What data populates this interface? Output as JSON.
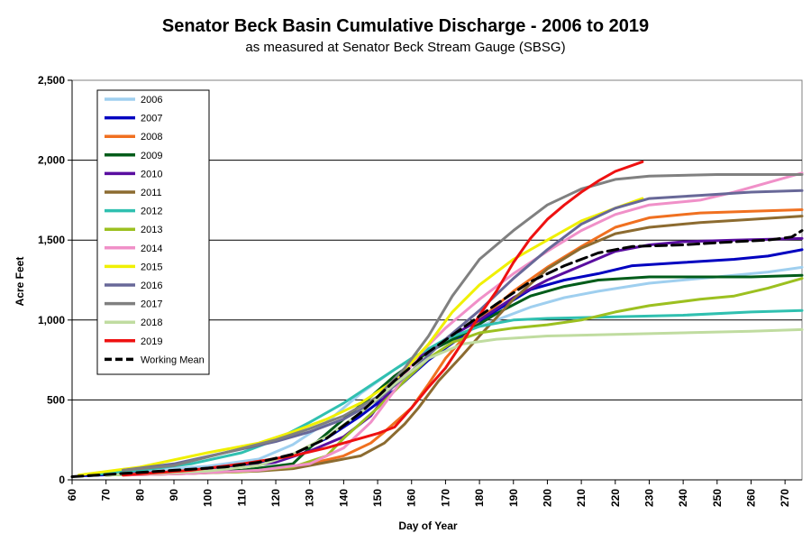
{
  "chart_data": {
    "type": "line",
    "title": "Senator Beck Basin Cumulative Discharge - 2006 to 2019",
    "subtitle": "as measured at Senator Beck Stream Gauge (SBSG)",
    "xlabel": "Day of Year",
    "ylabel": "Acre Feet",
    "xlim": [
      60,
      275
    ],
    "ylim": [
      0,
      2500
    ],
    "xticks": [
      60,
      70,
      80,
      90,
      100,
      110,
      120,
      130,
      140,
      150,
      160,
      170,
      180,
      190,
      200,
      210,
      220,
      230,
      240,
      250,
      260,
      270
    ],
    "yticks": [
      0,
      500,
      1000,
      1500,
      2000,
      2500
    ],
    "ytick_labels": [
      "0",
      "500",
      "1,000",
      "1,500",
      "2,000",
      "2,500"
    ],
    "grid": "horizontal",
    "legend_position": "top-left",
    "series": [
      {
        "name": "2006",
        "color": "#9fcfef",
        "dash": false,
        "points": [
          [
            65,
            25
          ],
          [
            80,
            55
          ],
          [
            100,
            85
          ],
          [
            115,
            130
          ],
          [
            125,
            220
          ],
          [
            135,
            360
          ],
          [
            145,
            540
          ],
          [
            155,
            690
          ],
          [
            165,
            820
          ],
          [
            175,
            920
          ],
          [
            185,
            1000
          ],
          [
            195,
            1080
          ],
          [
            205,
            1140
          ],
          [
            215,
            1180
          ],
          [
            230,
            1230
          ],
          [
            250,
            1270
          ],
          [
            265,
            1300
          ],
          [
            275,
            1330
          ]
        ]
      },
      {
        "name": "2007",
        "color": "#0000c0",
        "dash": false,
        "points": [
          [
            62,
            25
          ],
          [
            80,
            40
          ],
          [
            100,
            60
          ],
          [
            115,
            100
          ],
          [
            125,
            160
          ],
          [
            135,
            260
          ],
          [
            145,
            400
          ],
          [
            155,
            560
          ],
          [
            165,
            750
          ],
          [
            175,
            900
          ],
          [
            185,
            1060
          ],
          [
            195,
            1190
          ],
          [
            205,
            1250
          ],
          [
            215,
            1290
          ],
          [
            225,
            1340
          ],
          [
            240,
            1360
          ],
          [
            255,
            1380
          ],
          [
            265,
            1400
          ],
          [
            275,
            1440
          ]
        ]
      },
      {
        "name": "2008",
        "color": "#f07020",
        "dash": false,
        "points": [
          [
            75,
            30
          ],
          [
            95,
            40
          ],
          [
            115,
            60
          ],
          [
            130,
            100
          ],
          [
            140,
            150
          ],
          [
            148,
            230
          ],
          [
            152,
            300
          ],
          [
            160,
            450
          ],
          [
            165,
            600
          ],
          [
            170,
            760
          ],
          [
            175,
            880
          ],
          [
            180,
            1000
          ],
          [
            190,
            1180
          ],
          [
            200,
            1330
          ],
          [
            210,
            1460
          ],
          [
            220,
            1580
          ],
          [
            230,
            1640
          ],
          [
            245,
            1670
          ],
          [
            260,
            1680
          ],
          [
            275,
            1690
          ]
        ]
      },
      {
        "name": "2009",
        "color": "#005c1a",
        "dash": false,
        "points": [
          [
            70,
            30
          ],
          [
            90,
            45
          ],
          [
            110,
            60
          ],
          [
            125,
            100
          ],
          [
            130,
            200
          ],
          [
            135,
            290
          ],
          [
            140,
            380
          ],
          [
            148,
            520
          ],
          [
            155,
            650
          ],
          [
            165,
            800
          ],
          [
            175,
            910
          ],
          [
            185,
            1040
          ],
          [
            195,
            1150
          ],
          [
            205,
            1210
          ],
          [
            215,
            1250
          ],
          [
            230,
            1270
          ],
          [
            260,
            1270
          ],
          [
            275,
            1280
          ]
        ]
      },
      {
        "name": "2010",
        "color": "#5a0ea0",
        "dash": false,
        "points": [
          [
            70,
            30
          ],
          [
            90,
            45
          ],
          [
            105,
            65
          ],
          [
            120,
            110
          ],
          [
            130,
            180
          ],
          [
            140,
            270
          ],
          [
            148,
            400
          ],
          [
            155,
            600
          ],
          [
            162,
            770
          ],
          [
            170,
            880
          ],
          [
            180,
            1000
          ],
          [
            190,
            1140
          ],
          [
            200,
            1250
          ],
          [
            210,
            1340
          ],
          [
            220,
            1430
          ],
          [
            230,
            1470
          ],
          [
            240,
            1490
          ],
          [
            255,
            1500
          ],
          [
            275,
            1510
          ]
        ]
      },
      {
        "name": "2011",
        "color": "#8c6b30",
        "dash": false,
        "points": [
          [
            75,
            30
          ],
          [
            95,
            40
          ],
          [
            115,
            55
          ],
          [
            125,
            70
          ],
          [
            135,
            110
          ],
          [
            145,
            150
          ],
          [
            152,
            230
          ],
          [
            158,
            350
          ],
          [
            162,
            450
          ],
          [
            168,
            620
          ],
          [
            175,
            780
          ],
          [
            180,
            900
          ],
          [
            190,
            1130
          ],
          [
            200,
            1320
          ],
          [
            210,
            1450
          ],
          [
            220,
            1540
          ],
          [
            230,
            1580
          ],
          [
            245,
            1610
          ],
          [
            260,
            1630
          ],
          [
            275,
            1650
          ]
        ]
      },
      {
        "name": "2012",
        "color": "#30c0b0",
        "dash": false,
        "points": [
          [
            65,
            30
          ],
          [
            80,
            60
          ],
          [
            95,
            100
          ],
          [
            110,
            170
          ],
          [
            120,
            250
          ],
          [
            130,
            360
          ],
          [
            140,
            480
          ],
          [
            150,
            620
          ],
          [
            160,
            760
          ],
          [
            170,
            880
          ],
          [
            180,
            960
          ],
          [
            190,
            1000
          ],
          [
            200,
            1010
          ],
          [
            220,
            1020
          ],
          [
            240,
            1030
          ],
          [
            260,
            1050
          ],
          [
            275,
            1060
          ]
        ]
      },
      {
        "name": "2013",
        "color": "#9cc020",
        "dash": false,
        "points": [
          [
            70,
            30
          ],
          [
            90,
            40
          ],
          [
            110,
            50
          ],
          [
            125,
            80
          ],
          [
            135,
            150
          ],
          [
            140,
            260
          ],
          [
            150,
            450
          ],
          [
            158,
            620
          ],
          [
            165,
            760
          ],
          [
            172,
            860
          ],
          [
            180,
            920
          ],
          [
            190,
            950
          ],
          [
            200,
            970
          ],
          [
            210,
            1000
          ],
          [
            220,
            1050
          ],
          [
            230,
            1090
          ],
          [
            245,
            1130
          ],
          [
            255,
            1150
          ],
          [
            265,
            1200
          ],
          [
            275,
            1260
          ]
        ]
      },
      {
        "name": "2014",
        "color": "#f090c8",
        "dash": false,
        "points": [
          [
            75,
            30
          ],
          [
            95,
            40
          ],
          [
            115,
            60
          ],
          [
            130,
            100
          ],
          [
            140,
            200
          ],
          [
            148,
            360
          ],
          [
            155,
            560
          ],
          [
            162,
            780
          ],
          [
            170,
            950
          ],
          [
            180,
            1130
          ],
          [
            190,
            1290
          ],
          [
            200,
            1430
          ],
          [
            210,
            1560
          ],
          [
            220,
            1660
          ],
          [
            230,
            1720
          ],
          [
            245,
            1750
          ],
          [
            255,
            1800
          ],
          [
            265,
            1860
          ],
          [
            275,
            1920
          ]
        ]
      },
      {
        "name": "2015",
        "color": "#f0f000",
        "dash": false,
        "points": [
          [
            62,
            30
          ],
          [
            80,
            80
          ],
          [
            100,
            170
          ],
          [
            115,
            230
          ],
          [
            125,
            300
          ],
          [
            135,
            380
          ],
          [
            145,
            480
          ],
          [
            155,
            620
          ],
          [
            165,
            850
          ],
          [
            172,
            1050
          ],
          [
            180,
            1220
          ],
          [
            190,
            1380
          ],
          [
            200,
            1500
          ],
          [
            210,
            1620
          ],
          [
            220,
            1700
          ],
          [
            228,
            1760
          ]
        ]
      },
      {
        "name": "2016",
        "color": "#686898",
        "dash": false,
        "points": [
          [
            75,
            60
          ],
          [
            90,
            100
          ],
          [
            105,
            170
          ],
          [
            120,
            240
          ],
          [
            130,
            300
          ],
          [
            140,
            380
          ],
          [
            150,
            500
          ],
          [
            160,
            680
          ],
          [
            170,
            880
          ],
          [
            180,
            1060
          ],
          [
            190,
            1260
          ],
          [
            200,
            1440
          ],
          [
            210,
            1600
          ],
          [
            220,
            1700
          ],
          [
            230,
            1760
          ],
          [
            245,
            1780
          ],
          [
            260,
            1800
          ],
          [
            275,
            1810
          ]
        ]
      },
      {
        "name": "2017",
        "color": "#808080",
        "dash": false,
        "points": [
          [
            75,
            60
          ],
          [
            90,
            90
          ],
          [
            105,
            170
          ],
          [
            120,
            250
          ],
          [
            130,
            320
          ],
          [
            140,
            400
          ],
          [
            150,
            520
          ],
          [
            158,
            700
          ],
          [
            165,
            900
          ],
          [
            172,
            1150
          ],
          [
            180,
            1380
          ],
          [
            190,
            1560
          ],
          [
            200,
            1720
          ],
          [
            210,
            1820
          ],
          [
            220,
            1880
          ],
          [
            230,
            1900
          ],
          [
            250,
            1910
          ],
          [
            275,
            1910
          ]
        ]
      },
      {
        "name": "2018",
        "color": "#c0dca0",
        "dash": false,
        "points": [
          [
            70,
            30
          ],
          [
            85,
            40
          ],
          [
            100,
            55
          ],
          [
            115,
            90
          ],
          [
            125,
            160
          ],
          [
            135,
            270
          ],
          [
            145,
            420
          ],
          [
            155,
            600
          ],
          [
            165,
            760
          ],
          [
            175,
            850
          ],
          [
            185,
            880
          ],
          [
            200,
            900
          ],
          [
            220,
            910
          ],
          [
            240,
            920
          ],
          [
            260,
            930
          ],
          [
            275,
            940
          ]
        ]
      },
      {
        "name": "2019",
        "color": "#ee1111",
        "dash": false,
        "points": [
          [
            75,
            30
          ],
          [
            95,
            60
          ],
          [
            110,
            100
          ],
          [
            125,
            150
          ],
          [
            135,
            200
          ],
          [
            145,
            260
          ],
          [
            150,
            290
          ],
          [
            155,
            330
          ],
          [
            160,
            450
          ],
          [
            165,
            580
          ],
          [
            170,
            700
          ],
          [
            175,
            860
          ],
          [
            180,
            1030
          ],
          [
            185,
            1180
          ],
          [
            190,
            1360
          ],
          [
            195,
            1510
          ],
          [
            200,
            1630
          ],
          [
            205,
            1720
          ],
          [
            210,
            1800
          ],
          [
            215,
            1870
          ],
          [
            220,
            1930
          ],
          [
            228,
            1990
          ]
        ]
      },
      {
        "name": "Working Mean",
        "color": "#000000",
        "dash": true,
        "points": [
          [
            60,
            20
          ],
          [
            75,
            40
          ],
          [
            90,
            60
          ],
          [
            105,
            80
          ],
          [
            115,
            110
          ],
          [
            125,
            160
          ],
          [
            135,
            260
          ],
          [
            145,
            420
          ],
          [
            155,
            620
          ],
          [
            165,
            800
          ],
          [
            175,
            950
          ],
          [
            185,
            1100
          ],
          [
            195,
            1240
          ],
          [
            205,
            1340
          ],
          [
            215,
            1420
          ],
          [
            225,
            1460
          ],
          [
            240,
            1470
          ],
          [
            255,
            1490
          ],
          [
            265,
            1500
          ],
          [
            272,
            1520
          ],
          [
            275,
            1560
          ]
        ]
      }
    ]
  }
}
